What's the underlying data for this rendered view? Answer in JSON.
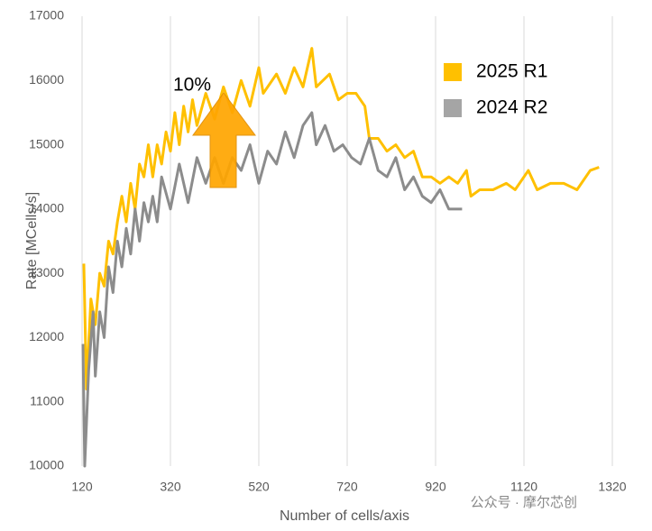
{
  "chart_data": {
    "type": "line",
    "x_label": "Number of cells/axis",
    "y_label": "Rate [MCells/s]",
    "annotation": "10%",
    "watermark": "公众号 · 摩尔芯创",
    "xlim": [
      120,
      1320
    ],
    "xticks": [
      120,
      320,
      520,
      720,
      920,
      1120,
      1320
    ],
    "ylim": [
      10000,
      17000
    ],
    "yticks": [
      10000,
      11000,
      12000,
      13000,
      14000,
      15000,
      16000,
      17000
    ],
    "grid": "x",
    "legend": "upper right",
    "series": [
      {
        "name": "2025 R1",
        "color": "#ffc000",
        "x": [
          124,
          130,
          140,
          150,
          160,
          170,
          180,
          190,
          200,
          210,
          220,
          230,
          240,
          250,
          260,
          270,
          280,
          290,
          300,
          310,
          320,
          330,
          340,
          350,
          360,
          370,
          380,
          400,
          420,
          440,
          460,
          480,
          500,
          520,
          530,
          560,
          580,
          600,
          620,
          640,
          650,
          680,
          700,
          720,
          740,
          760,
          770,
          790,
          810,
          830,
          850,
          870,
          890,
          910,
          930,
          950,
          970,
          990,
          1000,
          1020,
          1050,
          1080,
          1100,
          1130,
          1150,
          1180,
          1210,
          1240,
          1270,
          1290
        ],
        "values": [
          13150,
          11200,
          12600,
          12200,
          13000,
          12800,
          13500,
          13300,
          13800,
          14200,
          13800,
          14400,
          14000,
          14700,
          14500,
          15000,
          14500,
          15000,
          14700,
          15200,
          14900,
          15500,
          15000,
          15600,
          15200,
          15700,
          15300,
          15800,
          15400,
          15900,
          15500,
          16000,
          15600,
          16200,
          15800,
          16100,
          15800,
          16200,
          15900,
          16500,
          15900,
          16100,
          15700,
          15800,
          15800,
          15600,
          15100,
          15100,
          14900,
          15000,
          14800,
          14900,
          14500,
          14500,
          14400,
          14500,
          14400,
          14600,
          14200,
          14300,
          14300,
          14400,
          14300,
          14600,
          14300,
          14400,
          14400,
          14300,
          14600,
          14650
        ]
      },
      {
        "name": "2024 R2",
        "color": "#8c8c8c",
        "legend_color": "#a5a5a5",
        "x": [
          122,
          126,
          135,
          145,
          150,
          160,
          170,
          180,
          190,
          200,
          210,
          220,
          230,
          240,
          250,
          260,
          270,
          280,
          290,
          300,
          320,
          340,
          360,
          380,
          400,
          420,
          440,
          460,
          480,
          500,
          520,
          540,
          560,
          580,
          600,
          620,
          640,
          650,
          670,
          690,
          710,
          730,
          750,
          770,
          790,
          810,
          830,
          850,
          870,
          890,
          910,
          930,
          950,
          970,
          980
        ],
        "values": [
          11900,
          10000,
          11500,
          12400,
          11400,
          12400,
          12000,
          13100,
          12700,
          13500,
          13100,
          13700,
          13300,
          14000,
          13500,
          14100,
          13800,
          14200,
          13800,
          14500,
          14000,
          14700,
          14100,
          14800,
          14400,
          14800,
          14400,
          14800,
          14600,
          15000,
          14400,
          14900,
          14700,
          15200,
          14800,
          15300,
          15500,
          15000,
          15300,
          14900,
          15000,
          14800,
          14700,
          15100,
          14600,
          14500,
          14800,
          14300,
          14500,
          14200,
          14100,
          14300,
          14000,
          14000,
          14000
        ]
      }
    ]
  }
}
